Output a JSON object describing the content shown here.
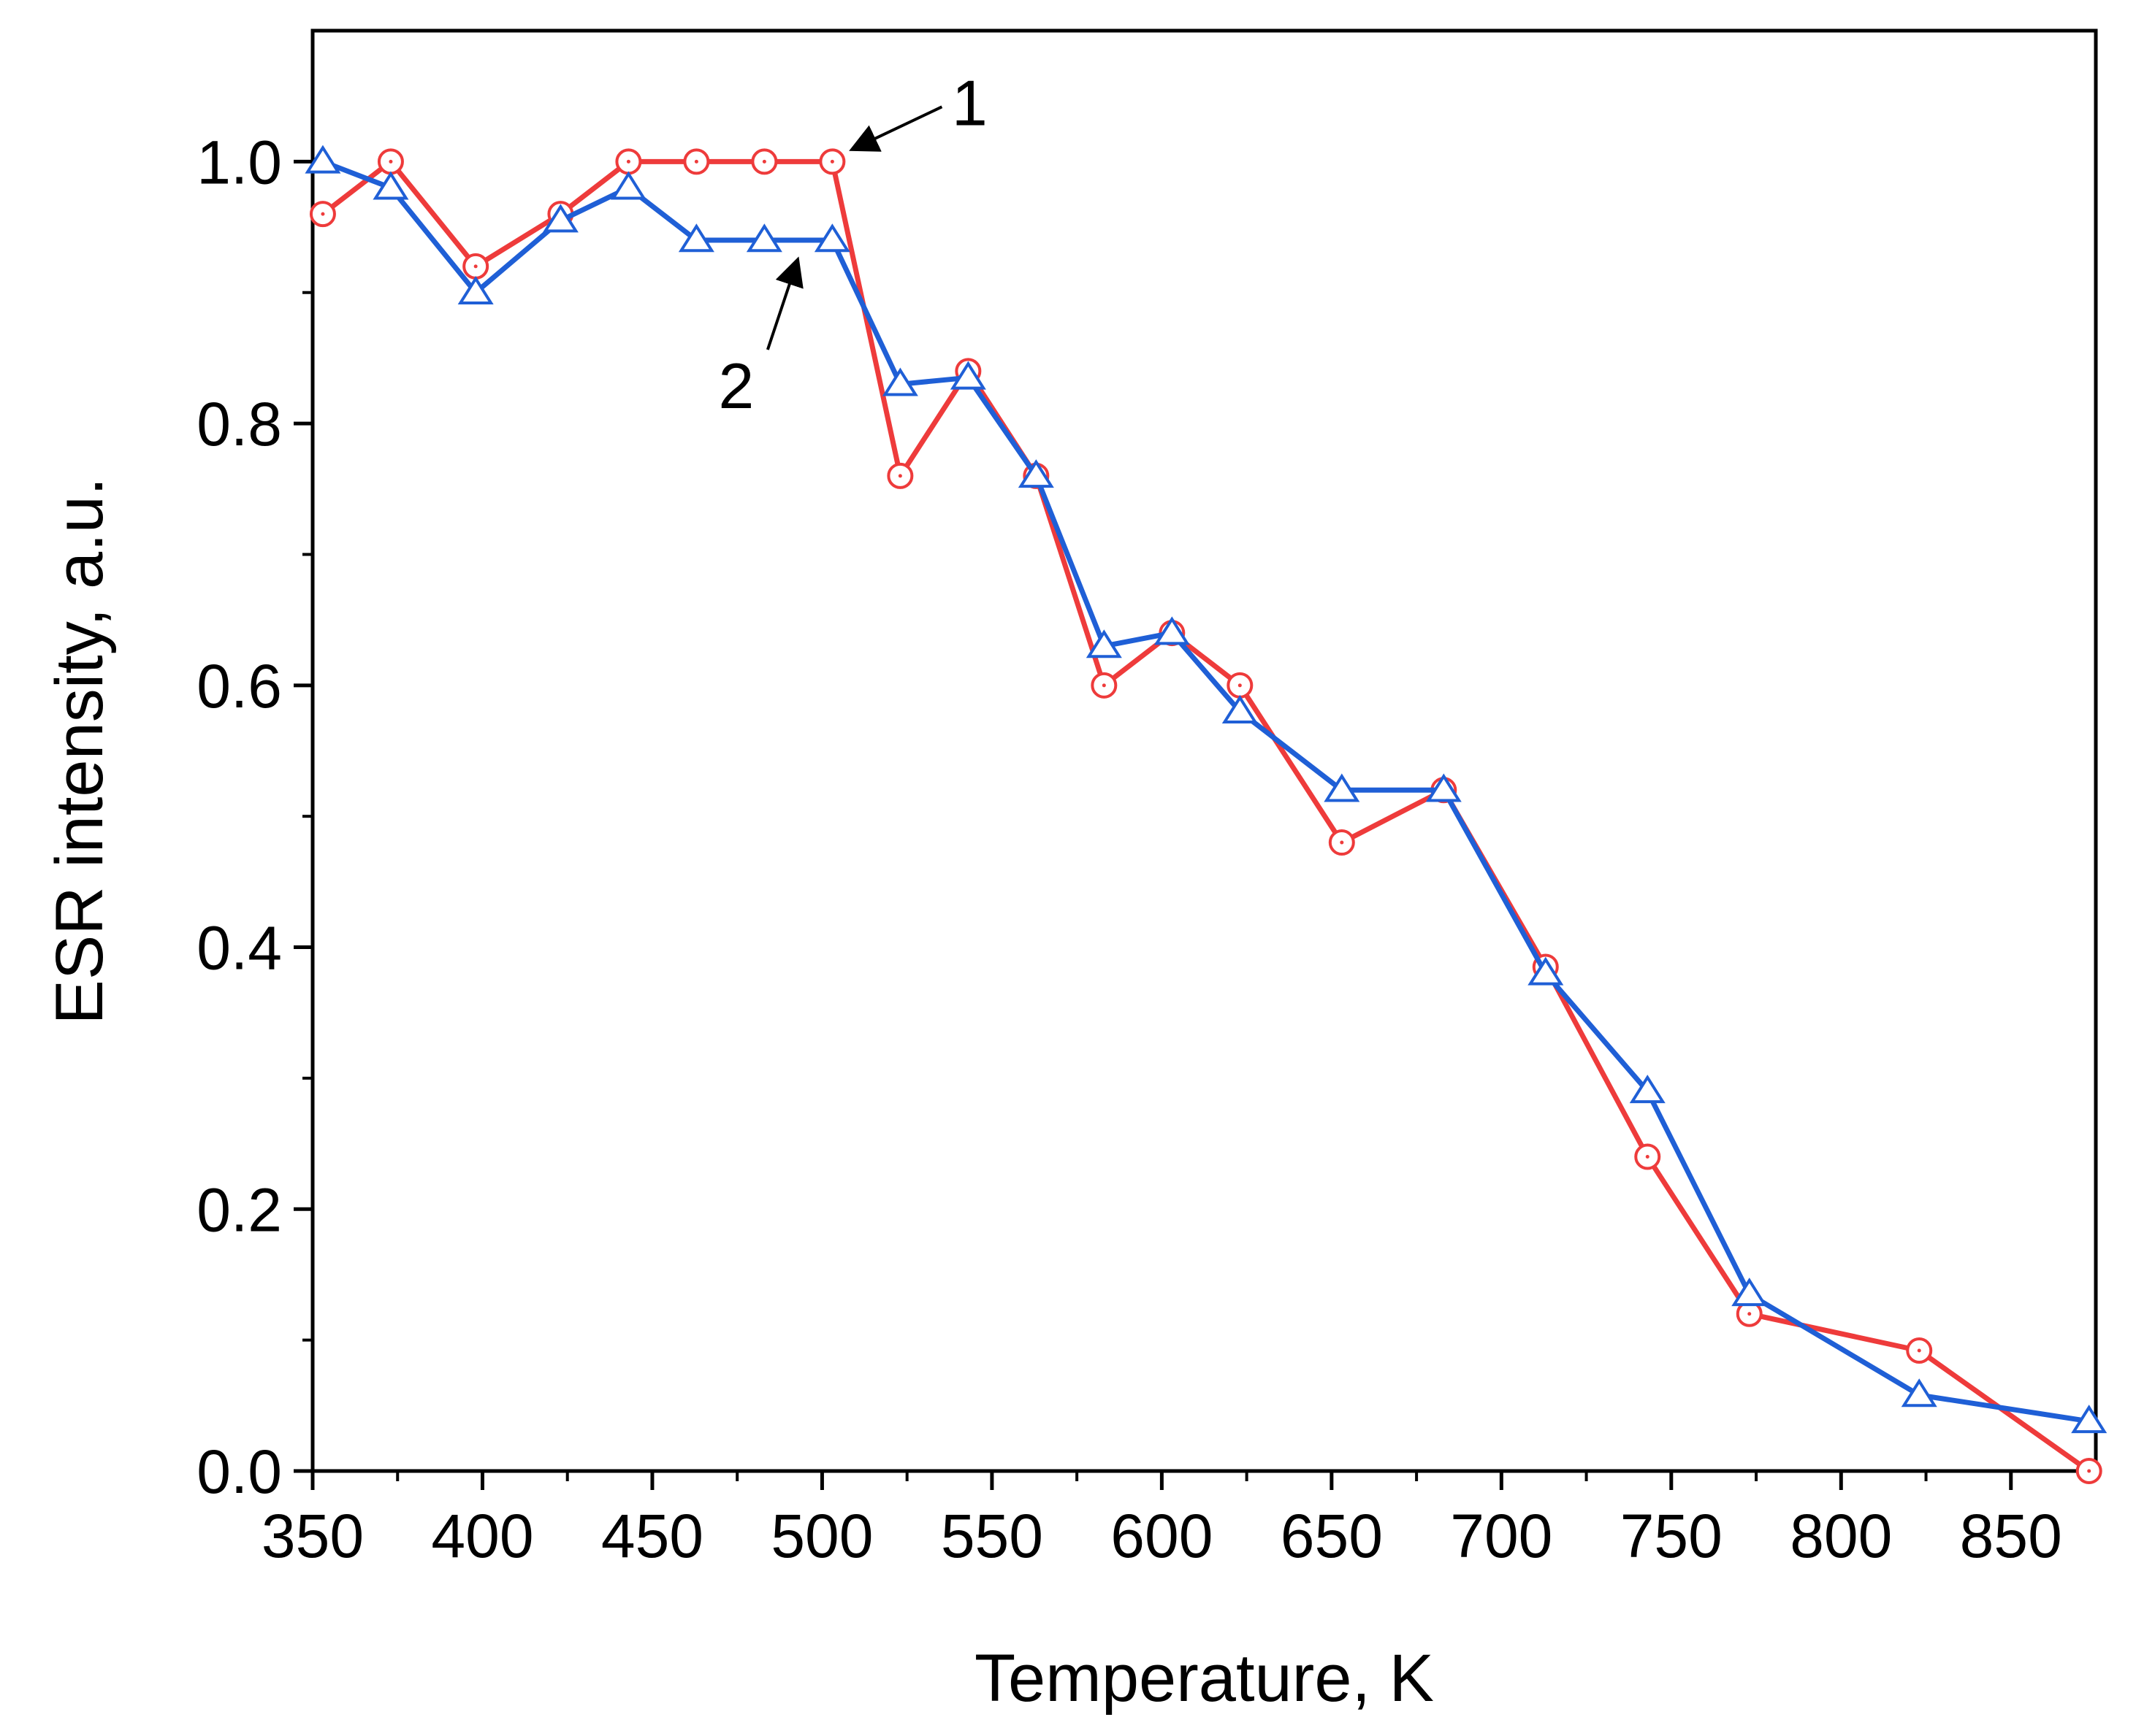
{
  "chart_data": {
    "type": "line",
    "xlabel": "Temperature, K",
    "ylabel": "ESR intensity, a.u.",
    "xlim": [
      350,
      875
    ],
    "ylim": [
      0,
      1.1
    ],
    "x_ticks": [
      350,
      400,
      450,
      500,
      550,
      600,
      650,
      700,
      750,
      800,
      850
    ],
    "y_ticks": [
      0.0,
      0.2,
      0.4,
      0.6,
      0.8,
      1.0
    ],
    "x_tick_labels": [
      "350",
      "400",
      "450",
      "500",
      "550",
      "600",
      "650",
      "700",
      "750",
      "800",
      "850"
    ],
    "y_tick_labels": [
      "0.0",
      "0.2",
      "0.4",
      "0.6",
      "0.8",
      "1.0"
    ],
    "grid": false,
    "series": [
      {
        "label": "1",
        "color": "#ee3b3b",
        "marker": "circle",
        "x": [
          353,
          373,
          398,
          423,
          443,
          463,
          483,
          503,
          523,
          543,
          563,
          583,
          603,
          623,
          653,
          683,
          713,
          743,
          773,
          823,
          873
        ],
        "y": [
          0.96,
          1.0,
          0.92,
          0.96,
          1.0,
          1.0,
          1.0,
          1.0,
          0.76,
          0.84,
          0.76,
          0.6,
          0.64,
          0.6,
          0.48,
          0.52,
          0.385,
          0.24,
          0.12,
          0.092,
          0.0
        ]
      },
      {
        "label": "2",
        "color": "#1f5fd6",
        "marker": "triangle",
        "x": [
          353,
          373,
          398,
          423,
          443,
          463,
          483,
          503,
          523,
          543,
          563,
          583,
          603,
          623,
          653,
          683,
          713,
          743,
          773,
          823,
          873
        ],
        "y": [
          1.0,
          0.98,
          0.9,
          0.955,
          0.98,
          0.94,
          0.94,
          0.94,
          0.83,
          0.835,
          0.76,
          0.63,
          0.64,
          0.58,
          0.52,
          0.52,
          0.38,
          0.29,
          0.135,
          0.058,
          0.038
        ]
      }
    ],
    "annotations": [
      {
        "text": "1",
        "target_series": 0,
        "target_x": 503,
        "target_y": 1.0
      },
      {
        "text": "2",
        "target_series": 1,
        "target_x": 493,
        "target_y": 0.94
      }
    ]
  }
}
